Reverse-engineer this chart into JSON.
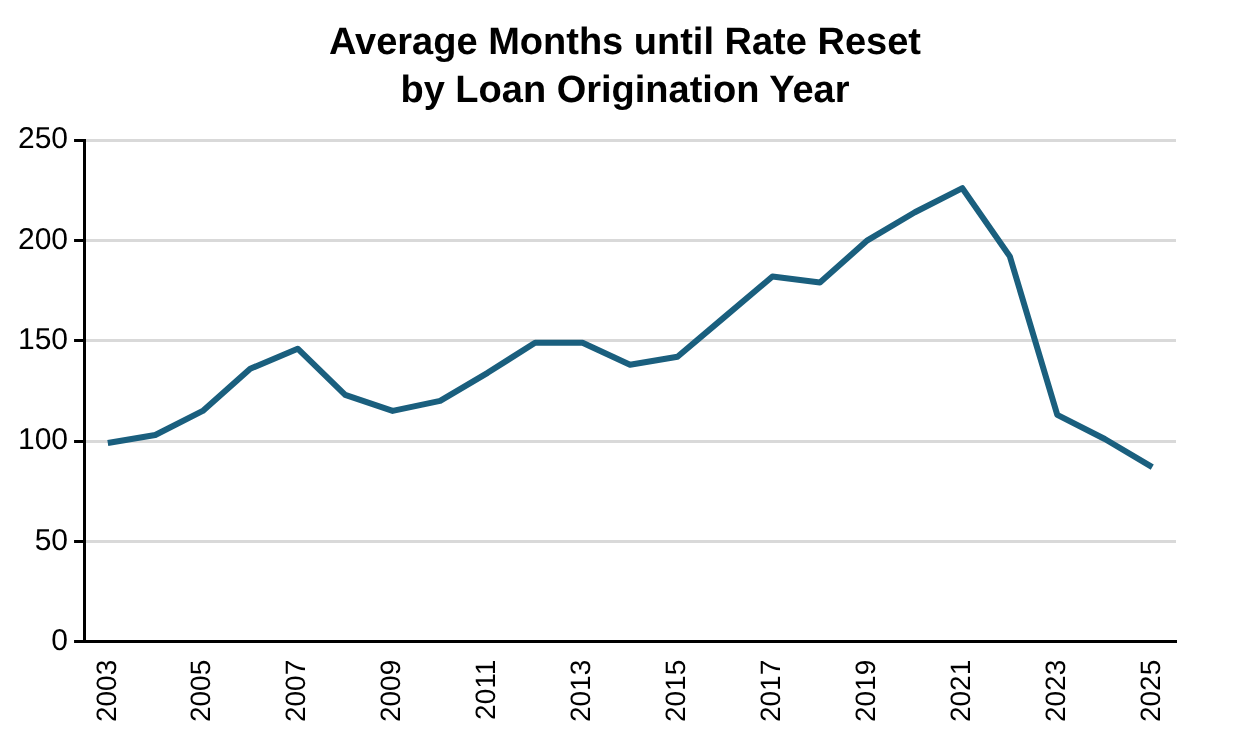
{
  "chart_data": {
    "type": "line",
    "title": "Average Months until Rate Reset\nby Loan Origination Year",
    "categories": [
      "2003",
      null,
      "2005",
      null,
      "2007",
      null,
      "2009",
      null,
      "2011",
      null,
      "2013",
      null,
      "2015",
      null,
      "2017",
      null,
      "2019",
      null,
      "2021",
      null,
      "2023",
      null,
      "2025"
    ],
    "series": [
      {
        "color": "#1a5f7e",
        "values": [
          99,
          103,
          115,
          136,
          146,
          123,
          115,
          120,
          134,
          149,
          149,
          138,
          142,
          162,
          182,
          179,
          200,
          214,
          226,
          192,
          113,
          101,
          87
        ]
      }
    ],
    "ylim": [
      0,
      250
    ],
    "yticks": [
      0,
      50,
      100,
      150,
      200,
      250
    ],
    "grid": "y",
    "legend": false,
    "marker": "none",
    "line_style": "solid"
  }
}
